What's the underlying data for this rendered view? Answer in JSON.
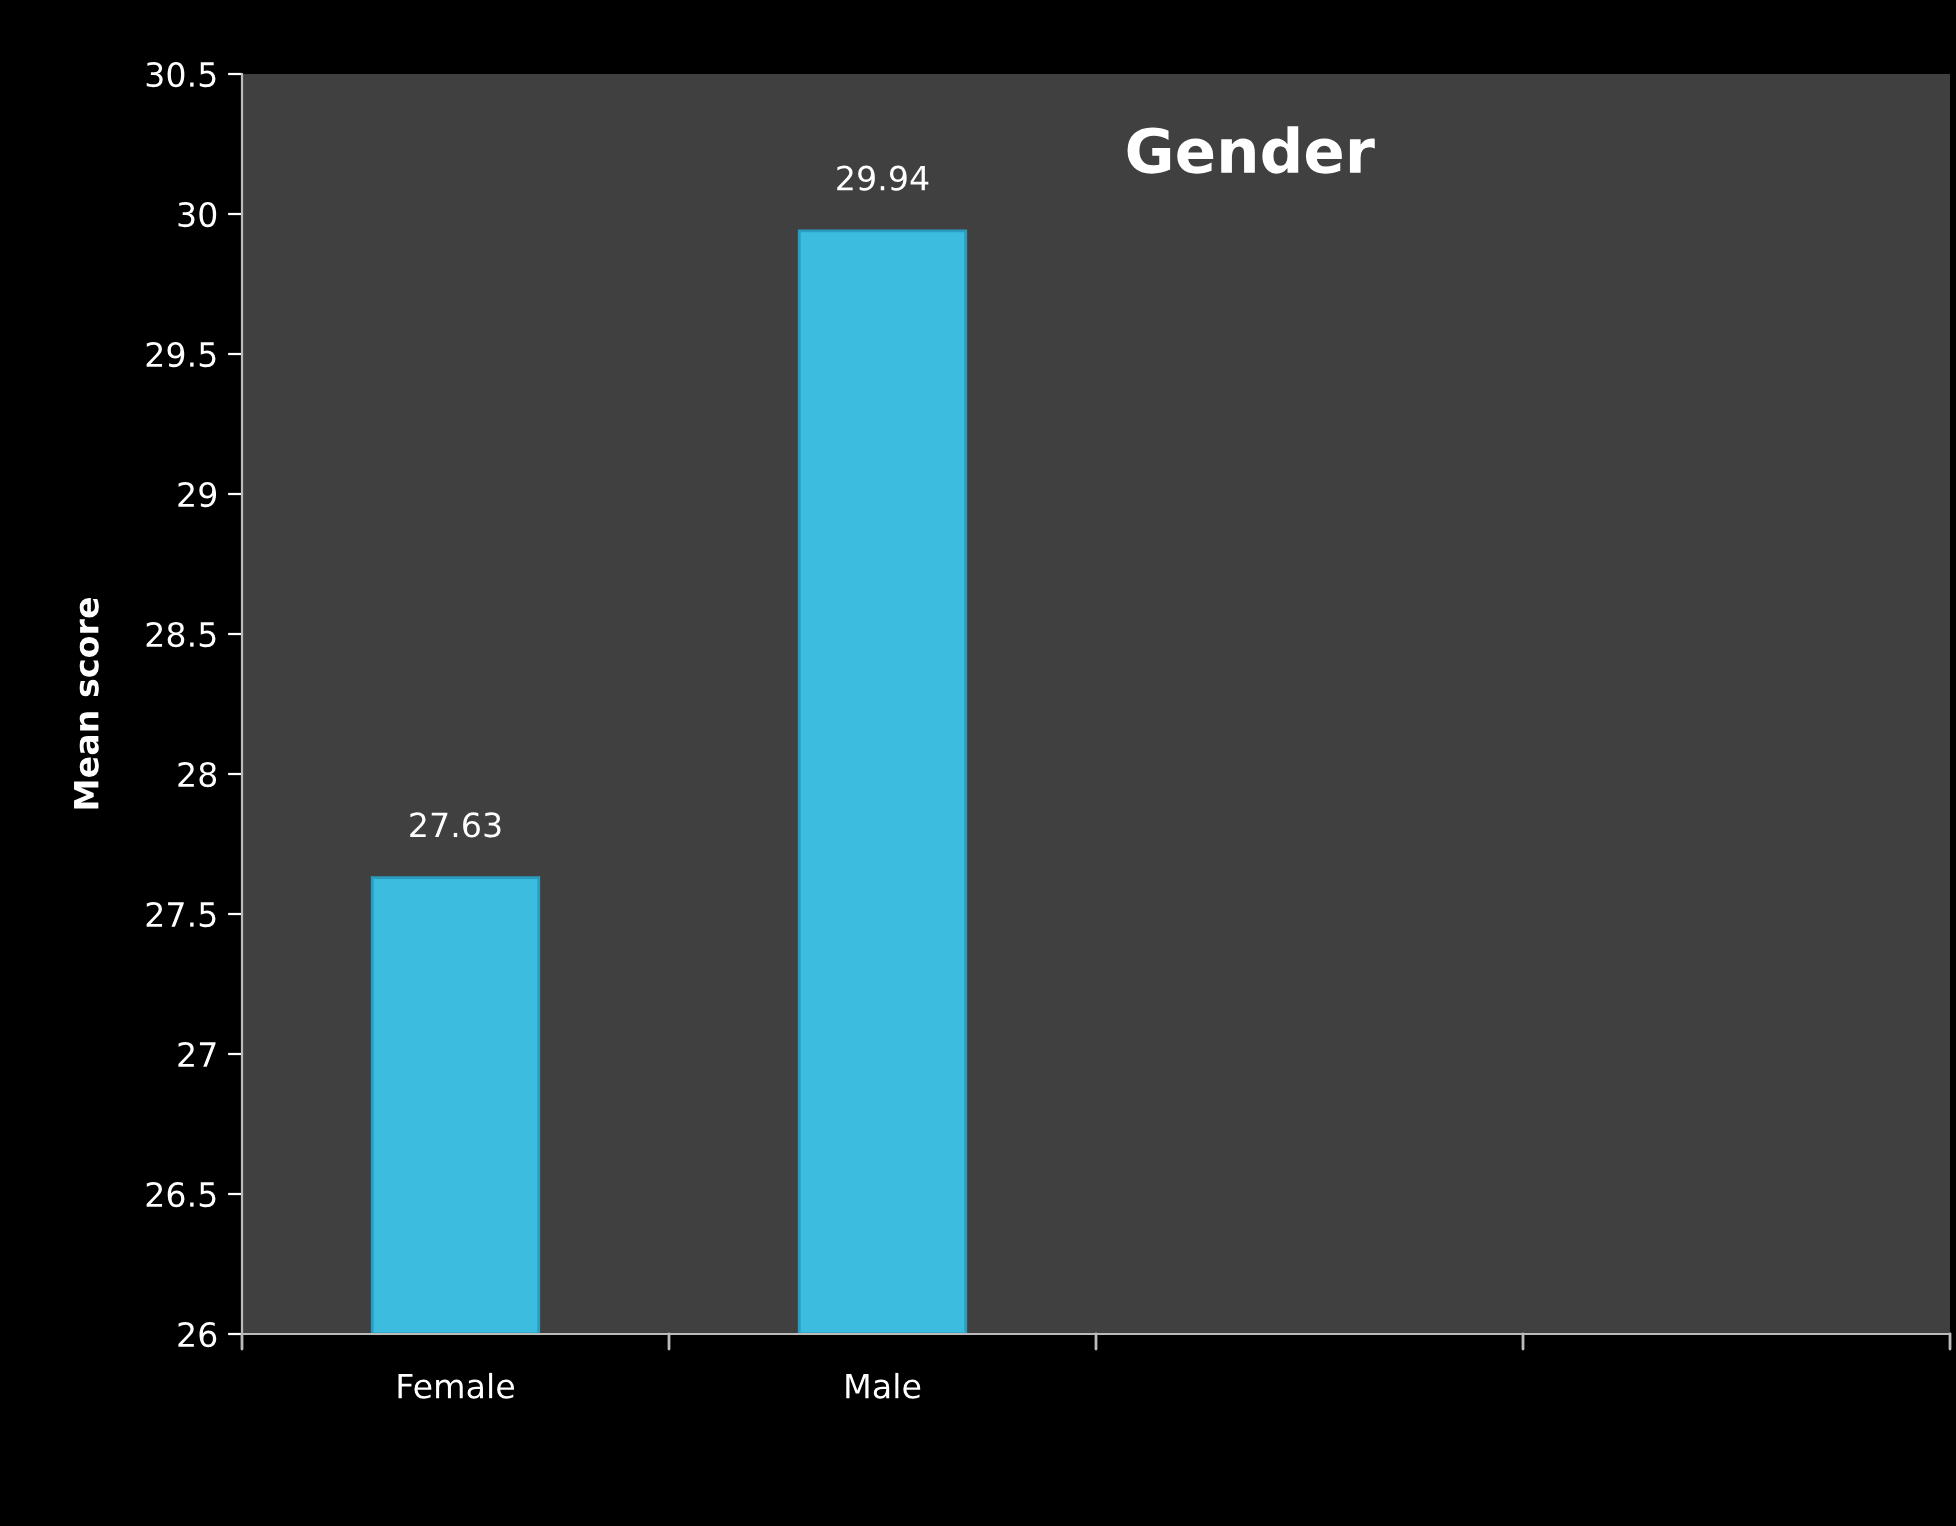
{
  "chart_data": {
    "type": "bar",
    "title": "Gender",
    "ylabel": "Mean score",
    "categories": [
      "Female",
      "Male",
      null,
      null
    ],
    "values": [
      27.63,
      29.94,
      null,
      null
    ],
    "color": "#3cbde0",
    "ylim": [
      26,
      30.5
    ],
    "yticks": [
      26,
      26.5,
      27,
      27.5,
      28,
      28.5,
      29,
      29.5,
      30,
      30.5
    ],
    "data_labels": true,
    "grid": false,
    "legend": false
  }
}
